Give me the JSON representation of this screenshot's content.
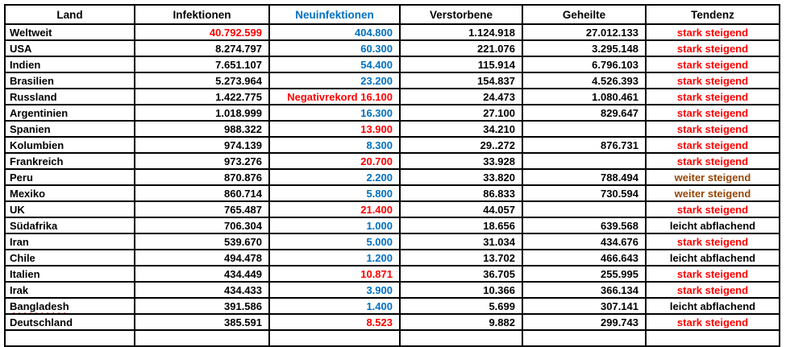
{
  "colors": {
    "black": "#000000",
    "red": "#ff0000",
    "blue": "#0070c0",
    "brown": "#974706"
  },
  "table": {
    "headers": [
      {
        "label": "Land",
        "color": "black"
      },
      {
        "label": "Infektionen",
        "color": "black"
      },
      {
        "label": "Neuinfektionen",
        "color": "blue"
      },
      {
        "label": "Verstorbene",
        "color": "black"
      },
      {
        "label": "Geheilte",
        "color": "black"
      },
      {
        "label": "Tendenz",
        "color": "black"
      }
    ],
    "rows": [
      {
        "land": "Weltweit",
        "infektionen": "40.792.599",
        "infektionen_color": "red",
        "neuinfektionen": "404.800",
        "neuinfektionen_color": "blue",
        "verstorbene": "1.124.918",
        "geheilte": "27.012.133",
        "tendenz": "stark steigend",
        "tendenz_color": "red"
      },
      {
        "land": "USA",
        "infektionen": "8.274.797",
        "infektionen_color": "black",
        "neuinfektionen": "60.300",
        "neuinfektionen_color": "blue",
        "verstorbene": "221.076",
        "geheilte": "3.295.148",
        "tendenz": "stark steigend",
        "tendenz_color": "red"
      },
      {
        "land": "Indien",
        "infektionen": "7.651.107",
        "infektionen_color": "black",
        "neuinfektionen": "54.400",
        "neuinfektionen_color": "blue",
        "verstorbene": "115.914",
        "geheilte": "6.796.103",
        "tendenz": "stark steigend",
        "tendenz_color": "red"
      },
      {
        "land": "Brasilien",
        "infektionen": "5.273.964",
        "infektionen_color": "black",
        "neuinfektionen": "23.200",
        "neuinfektionen_color": "blue",
        "verstorbene": "154.837",
        "geheilte": "4.526.393",
        "tendenz": "stark steigend",
        "tendenz_color": "red"
      },
      {
        "land": "Russland",
        "infektionen": "1.422.775",
        "infektionen_color": "black",
        "neuinfektionen": "Negativrekord 16.100",
        "neuinfektionen_color": "red",
        "verstorbene": "24.473",
        "geheilte": "1.080.461",
        "tendenz": "stark steigend",
        "tendenz_color": "red"
      },
      {
        "land": "Argentinien",
        "infektionen": "1.018.999",
        "infektionen_color": "black",
        "neuinfektionen": "16.300",
        "neuinfektionen_color": "blue",
        "verstorbene": "27.100",
        "geheilte": "829.647",
        "tendenz": "stark steigend",
        "tendenz_color": "red"
      },
      {
        "land": "Spanien",
        "infektionen": "988.322",
        "infektionen_color": "black",
        "neuinfektionen": "13.900",
        "neuinfektionen_color": "red",
        "verstorbene": "34.210",
        "geheilte": "",
        "tendenz": "stark steigend",
        "tendenz_color": "red"
      },
      {
        "land": "Kolumbien",
        "infektionen": "974.139",
        "infektionen_color": "black",
        "neuinfektionen": "8.300",
        "neuinfektionen_color": "blue",
        "verstorbene": "29..272",
        "geheilte": "876.731",
        "tendenz": "stark steigend",
        "tendenz_color": "red"
      },
      {
        "land": "Frankreich",
        "infektionen": "973.276",
        "infektionen_color": "black",
        "neuinfektionen": "20.700",
        "neuinfektionen_color": "red",
        "verstorbene": "33.928",
        "geheilte": "",
        "tendenz": "stark steigend",
        "tendenz_color": "red"
      },
      {
        "land": "Peru",
        "infektionen": "870.876",
        "infektionen_color": "black",
        "neuinfektionen": "2.200",
        "neuinfektionen_color": "blue",
        "verstorbene": "33.820",
        "geheilte": "788.494",
        "tendenz": "weiter steigend",
        "tendenz_color": "brown"
      },
      {
        "land": "Mexiko",
        "infektionen": "860.714",
        "infektionen_color": "black",
        "neuinfektionen": "5.800",
        "neuinfektionen_color": "blue",
        "verstorbene": "86.833",
        "geheilte": "730.594",
        "tendenz": "weiter steigend",
        "tendenz_color": "brown"
      },
      {
        "land": "UK",
        "infektionen": "765.487",
        "infektionen_color": "black",
        "neuinfektionen": "21.400",
        "neuinfektionen_color": "red",
        "verstorbene": "44.057",
        "geheilte": "",
        "tendenz": "stark steigend",
        "tendenz_color": "red"
      },
      {
        "land": "Südafrika",
        "infektionen": "706.304",
        "infektionen_color": "black",
        "neuinfektionen": "1.000",
        "neuinfektionen_color": "blue",
        "verstorbene": "18.656",
        "geheilte": "639.568",
        "tendenz": "leicht abflachend",
        "tendenz_color": "black"
      },
      {
        "land": "Iran",
        "infektionen": "539.670",
        "infektionen_color": "black",
        "neuinfektionen": "5.000",
        "neuinfektionen_color": "blue",
        "verstorbene": "31.034",
        "geheilte": "434.676",
        "tendenz": "stark steigend",
        "tendenz_color": "red"
      },
      {
        "land": "Chile",
        "infektionen": "494.478",
        "infektionen_color": "black",
        "neuinfektionen": "1.200",
        "neuinfektionen_color": "blue",
        "verstorbene": "13.702",
        "geheilte": "466.643",
        "tendenz": "leicht abflachend",
        "tendenz_color": "black"
      },
      {
        "land": "Italien",
        "infektionen": "434.449",
        "infektionen_color": "black",
        "neuinfektionen": "10.871",
        "neuinfektionen_color": "red",
        "verstorbene": "36.705",
        "geheilte": "255.995",
        "tendenz": "stark steigend",
        "tendenz_color": "red"
      },
      {
        "land": "Irak",
        "infektionen": "434.433",
        "infektionen_color": "black",
        "neuinfektionen": "3.900",
        "neuinfektionen_color": "blue",
        "verstorbene": "10.366",
        "geheilte": "366.134",
        "tendenz": "stark steigend",
        "tendenz_color": "red"
      },
      {
        "land": "Bangladesh",
        "spellcheck_underline": true,
        "infektionen": "391.586",
        "infektionen_color": "black",
        "neuinfektionen": "1.400",
        "neuinfektionen_color": "blue",
        "verstorbene": "5.699",
        "geheilte": "307.141",
        "tendenz": "leicht abflachend",
        "tendenz_color": "black"
      },
      {
        "land": "Deutschland",
        "infektionen": "385.591",
        "infektionen_color": "black",
        "neuinfektionen": "8.523",
        "neuinfektionen_color": "red",
        "verstorbene": "9.882",
        "geheilte": "299.743",
        "tendenz": "stark steigend",
        "tendenz_color": "red"
      }
    ],
    "empty_trailing_row": true
  }
}
